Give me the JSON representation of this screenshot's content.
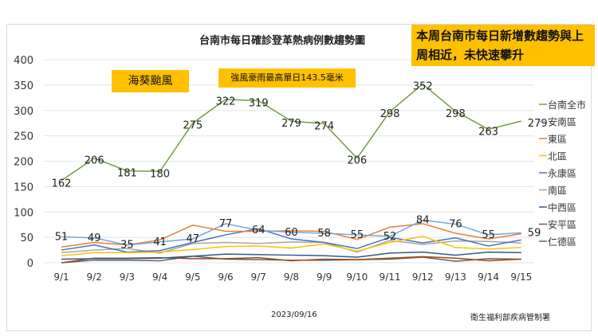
{
  "title": "台南市每日確診登革熱病例數趨勢圖",
  "note": "本周台南市每日新增數趨勢與上周相近，未快速攀升",
  "annotation_typhoon": "海葵颱風",
  "annotation_rain": "強風豪雨最高單日143.5毫米",
  "date": "2023/09/16",
  "source": "衛生福利部疾病管制署",
  "chart_data": {
    "type": "line",
    "title": "台南市每日確診登革熱病例數趨勢圖",
    "categories": [
      "9/1",
      "9/2",
      "9/3",
      "9/4",
      "9/5",
      "9/6",
      "9/7",
      "9/8",
      "9/9",
      "9/10",
      "9/11",
      "9/12",
      "9/13",
      "9/14",
      "9/15"
    ],
    "ylim": [
      0,
      400
    ],
    "yticks": [
      0,
      50,
      100,
      150,
      200,
      250,
      300,
      350,
      400
    ],
    "grid": true,
    "legend": "right",
    "series": [
      {
        "name": "台南全市",
        "color": "#70a040",
        "labels": true,
        "values": [
          162,
          206,
          181,
          180,
          275,
          322,
          319,
          279,
          274,
          206,
          298,
          352,
          298,
          263,
          279
        ]
      },
      {
        "name": "安南區",
        "color": "#6fa8dc",
        "labels": true,
        "values": [
          51,
          49,
          35,
          41,
          47,
          77,
          64,
          60,
          58,
          55,
          52,
          84,
          76,
          55,
          59
        ]
      },
      {
        "name": "東區",
        "color": "#ed7d31",
        "values": [
          31,
          40,
          35,
          45,
          74,
          62,
          62,
          63,
          62,
          46,
          70,
          77,
          58,
          47,
          57
        ]
      },
      {
        "name": "北區",
        "color": "#ffc000",
        "values": [
          14,
          20,
          20,
          21,
          26,
          32,
          33,
          29,
          37,
          23,
          40,
          52,
          30,
          27,
          30
        ]
      },
      {
        "name": "永康區",
        "color": "#4472c4",
        "values": [
          25,
          35,
          21,
          24,
          40,
          55,
          67,
          47,
          40,
          28,
          50,
          39,
          49,
          33,
          45
        ]
      },
      {
        "name": "南區",
        "color": "#a5a5a5",
        "values": [
          20,
          25,
          28,
          19,
          38,
          40,
          38,
          41,
          40,
          21,
          44,
          36,
          43,
          42,
          39
        ]
      },
      {
        "name": "中西區",
        "color": "#255e91",
        "values": [
          7,
          8,
          8,
          9,
          13,
          17,
          16,
          15,
          14,
          11,
          19,
          21,
          15,
          21,
          20
        ]
      },
      {
        "name": "安平區",
        "color": "#9e480e",
        "values": [
          0,
          9,
          9,
          10,
          8,
          8,
          10,
          4,
          7,
          6,
          9,
          12,
          9,
          4,
          7
        ]
      },
      {
        "name": "仁德區",
        "color": "#636363",
        "values": [
          0,
          5,
          5,
          4,
          13,
          7,
          6,
          5,
          5,
          6,
          7,
          11,
          3,
          8,
          7
        ]
      }
    ]
  }
}
